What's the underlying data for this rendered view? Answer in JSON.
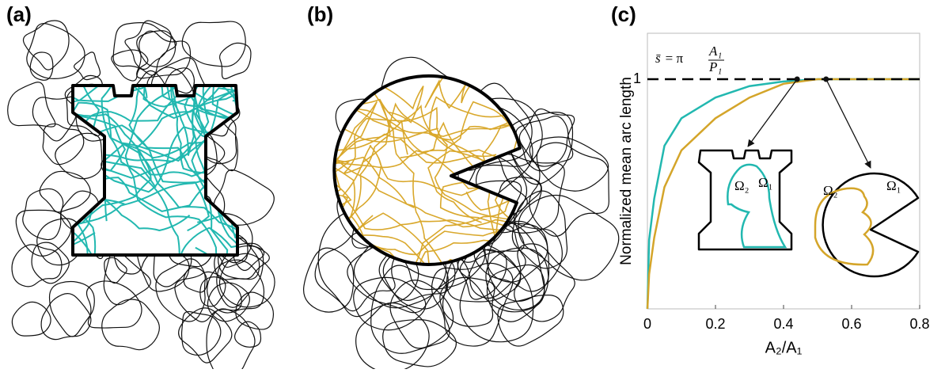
{
  "panels": {
    "a": {
      "label": "(a)"
    },
    "b": {
      "label": "(b)"
    }
  },
  "chart_data": {
    "type": "line",
    "label": "(c)",
    "x_label": "A₂/A₁",
    "y_label": "Normalized mean arc length",
    "x": [
      0,
      0.005,
      0.02,
      0.05,
      0.1,
      0.2,
      0.3,
      0.4,
      0.5,
      0.6,
      0.7,
      0.8
    ],
    "series": [
      {
        "color": "#22b8b0",
        "values": [
          0,
          0.3,
          0.48,
          0.71,
          0.83,
          0.92,
          0.97,
          0.99,
          1,
          1,
          1,
          1
        ]
      },
      {
        "color": "#d4a52a",
        "values": [
          0,
          0.15,
          0.31,
          0.53,
          0.69,
          0.83,
          0.92,
          0.98,
          1,
          1,
          1,
          1
        ]
      }
    ],
    "xlim": [
      0,
      0.8
    ],
    "xticks": [
      0,
      0.2,
      0.4,
      0.6,
      0.8
    ],
    "ylim": [
      0,
      1.2
    ],
    "yticks": [
      1
    ],
    "hline": 1,
    "annotation": {
      "lhs": "s̄",
      "eq": "= π",
      "num": "A₁",
      "den": "P₁"
    },
    "markers": [
      {
        "x": 0.44,
        "y": 1
      },
      {
        "x": 0.525,
        "y": 1
      }
    ],
    "insets": [
      {
        "outer": "Ω₁",
        "inner": "Ω₂"
      },
      {
        "outer": "Ω₁",
        "inner": "Ω₂"
      }
    ]
  }
}
